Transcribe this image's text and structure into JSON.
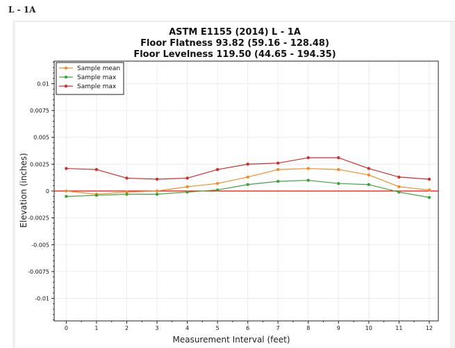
{
  "page": {
    "title": "L - 1A"
  },
  "chart_data": {
    "type": "line",
    "title": [
      "ASTM E1155 (2014) L - 1A",
      "Floor Flatness 93.82 (59.16 - 128.48)",
      "Floor Levelness 119.50 (44.65 - 194.35)"
    ],
    "xlabel": "Measurement Interval (feet)",
    "ylabel": "Elevation (inches)",
    "x": [
      0,
      1,
      2,
      3,
      4,
      5,
      6,
      7,
      8,
      9,
      10,
      11,
      12
    ],
    "xlim": [
      -0.4,
      12.3
    ],
    "ylim": [
      -0.0121,
      0.0121
    ],
    "xticks": [
      "0",
      "1",
      "2",
      "3",
      "4",
      "5",
      "6",
      "7",
      "8",
      "9",
      "10",
      "11",
      "12"
    ],
    "yticks": [
      0.01,
      0.0075,
      0.005,
      0.0025,
      0,
      -0.0025,
      -0.005,
      -0.0075,
      -0.01
    ],
    "yticklabels": [
      "0.01",
      "0.0075",
      "0.005",
      "0.0025",
      "0",
      "-0.0025",
      "-0.005",
      "-0.0075",
      "-0.01"
    ],
    "grid": true,
    "legend_position": "top-left",
    "zero_line_color": "#ff0000",
    "series": [
      {
        "name": "Sample mean",
        "color": "#f08c28",
        "values": [
          0.0,
          -0.0003,
          -0.0001,
          0.0,
          0.0004,
          0.0007,
          0.0013,
          0.002,
          0.0021,
          0.002,
          0.0015,
          0.0004,
          0.0001
        ]
      },
      {
        "name": "Sample max",
        "color": "#3aa43a",
        "values": [
          -0.0005,
          -0.0004,
          -0.0003,
          -0.0003,
          -0.0001,
          0.0001,
          0.0006,
          0.0009,
          0.001,
          0.0007,
          0.0006,
          -0.0001,
          -0.0006
        ]
      },
      {
        "name": "Sample max",
        "color": "#d42b2b",
        "values": [
          0.0021,
          0.002,
          0.0012,
          0.0011,
          0.0012,
          0.002,
          0.0025,
          0.0026,
          0.0031,
          0.0031,
          0.0021,
          0.0013,
          0.0011
        ]
      }
    ]
  }
}
